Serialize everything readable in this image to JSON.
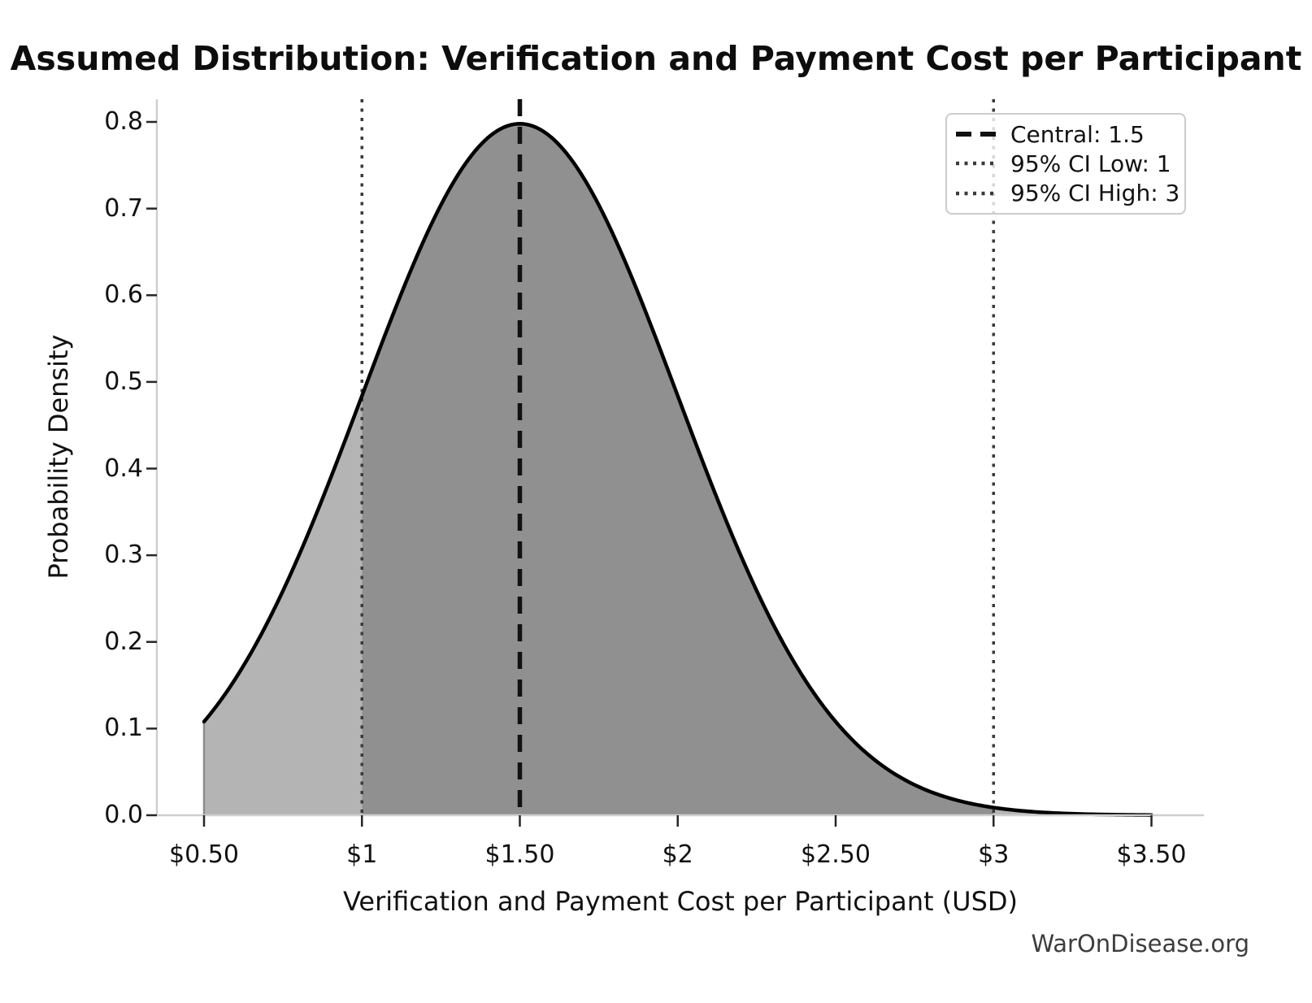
{
  "figure": {
    "watermark": "WarOnDisease.org"
  },
  "chart_data": {
    "type": "area",
    "title": "Assumed Distribution: Verification and Payment Cost per Participant",
    "xlabel": "Verification and Payment Cost per Participant (USD)",
    "ylabel": "Probability Density",
    "grid": false,
    "legend_position": "upper right",
    "xlim": [
      0.35,
      3.67
    ],
    "ylim": [
      0,
      0.826
    ],
    "x_tick_values": [
      0.5,
      1,
      1.5,
      2,
      2.5,
      3,
      3.5
    ],
    "x_tick_labels": [
      "$0.50",
      "$1",
      "$1.50",
      "$2",
      "$2.50",
      "$3",
      "$3.50"
    ],
    "y_tick_values": [
      0.0,
      0.1,
      0.2,
      0.3,
      0.4,
      0.5,
      0.6,
      0.7,
      0.8
    ],
    "y_tick_labels": [
      "0.0",
      "0.1",
      "0.2",
      "0.3",
      "0.4",
      "0.5",
      "0.6",
      "0.7",
      "0.8"
    ],
    "distribution_fit": {
      "shape": "normal",
      "mean": 1.5,
      "sd": 0.5,
      "x_range": [
        0.5,
        3.5
      ],
      "peak_density": 0.798
    },
    "series": [
      {
        "name": "probability-density",
        "x": [
          0.5,
          0.75,
          1.0,
          1.25,
          1.5,
          1.75,
          2.0,
          2.25,
          2.5,
          2.75,
          3.0,
          3.25,
          3.5
        ],
        "y": [
          0.108,
          0.259,
          0.484,
          0.704,
          0.798,
          0.704,
          0.484,
          0.259,
          0.108,
          0.035,
          0.009,
          0.002,
          0.0003
        ]
      }
    ],
    "markers": {
      "central": 1.5,
      "ci_low": 1,
      "ci_high": 3
    },
    "regions": [
      {
        "from": 0.5,
        "to": 1.0,
        "fill": "#b4b4b4",
        "meaning": "below 95% CI"
      },
      {
        "from": 1.0,
        "to": 3.0,
        "fill": "#909090",
        "meaning": "within 95% CI"
      },
      {
        "from": 3.0,
        "to": 3.5,
        "fill": "#b4b4b4",
        "meaning": "above 95% CI"
      }
    ],
    "line_color": "#000000",
    "central_line_color": "#111111",
    "ci_line_color": "#3a3a3a",
    "spine_color": "#cfcfcf",
    "legend": [
      {
        "label": "Central: 1.5",
        "style": "dashed"
      },
      {
        "label": "95% CI Low: 1",
        "style": "dotted"
      },
      {
        "label": "95% CI High: 3",
        "style": "dotted"
      }
    ]
  }
}
